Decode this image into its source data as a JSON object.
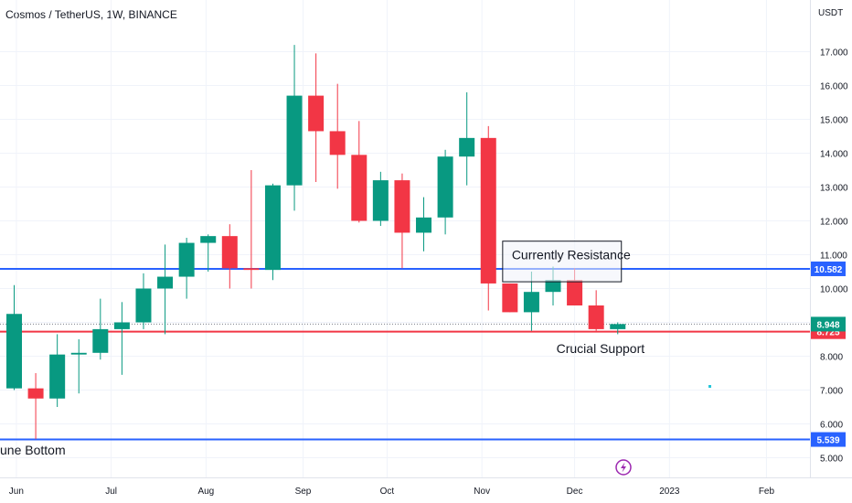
{
  "header": {
    "title": "Cosmos / TetherUS, 1W, BINANCE",
    "currency": "USDT"
  },
  "colors": {
    "up": "#089981",
    "down": "#f23645",
    "blue_line": "#2962ff",
    "red_line": "#f23645",
    "grid": "#f0f3fa",
    "axis_text": "#131722"
  },
  "chart_data": {
    "type": "candlestick",
    "interval": "1W",
    "y_ticks": [
      "5.000",
      "6.000",
      "7.000",
      "8.000",
      "9.000",
      "10.000",
      "11.000",
      "12.000",
      "13.000",
      "14.000",
      "15.000",
      "16.000",
      "17.000"
    ],
    "y_range": [
      4.85,
      18.0
    ],
    "x_ticks": [
      {
        "label": "Jun",
        "week": 0.1
      },
      {
        "label": "Jul",
        "week": 4.5
      },
      {
        "label": "Aug",
        "week": 8.9
      },
      {
        "label": "Sep",
        "week": 13.4
      },
      {
        "label": "Oct",
        "week": 17.3
      },
      {
        "label": "Nov",
        "week": 21.7
      },
      {
        "label": "Dec",
        "week": 26.0
      },
      {
        "label": "2023",
        "week": 30.4
      },
      {
        "label": "Feb",
        "week": 34.9
      }
    ],
    "candles": [
      {
        "date": "2022-05-30",
        "o": 7.05,
        "h": 10.1,
        "l": 7.0,
        "c": 9.25
      },
      {
        "date": "2022-06-06",
        "o": 7.05,
        "h": 7.5,
        "l": 5.55,
        "c": 6.75
      },
      {
        "date": "2022-06-13",
        "o": 6.75,
        "h": 8.65,
        "l": 6.5,
        "c": 8.05
      },
      {
        "date": "2022-06-20",
        "o": 8.05,
        "h": 8.5,
        "l": 6.9,
        "c": 8.1
      },
      {
        "date": "2022-06-27",
        "o": 8.1,
        "h": 9.7,
        "l": 7.9,
        "c": 8.8
      },
      {
        "date": "2022-07-04",
        "o": 8.8,
        "h": 9.6,
        "l": 7.45,
        "c": 9.0
      },
      {
        "date": "2022-07-11",
        "o": 9.0,
        "h": 10.45,
        "l": 8.8,
        "c": 10.0
      },
      {
        "date": "2022-07-18",
        "o": 10.0,
        "h": 11.3,
        "l": 8.65,
        "c": 10.35
      },
      {
        "date": "2022-07-25",
        "o": 10.35,
        "h": 11.5,
        "l": 9.7,
        "c": 11.35
      },
      {
        "date": "2022-08-01",
        "o": 11.35,
        "h": 11.6,
        "l": 10.5,
        "c": 11.55
      },
      {
        "date": "2022-08-08",
        "o": 11.55,
        "h": 11.9,
        "l": 10.0,
        "c": 10.6
      },
      {
        "date": "2022-08-15",
        "o": 10.6,
        "h": 13.5,
        "l": 10.0,
        "c": 10.55
      },
      {
        "date": "2022-08-22",
        "o": 10.55,
        "h": 13.1,
        "l": 10.25,
        "c": 13.05
      },
      {
        "date": "2022-08-29",
        "o": 13.05,
        "h": 17.2,
        "l": 12.3,
        "c": 15.7
      },
      {
        "date": "2022-09-05",
        "o": 15.7,
        "h": 16.95,
        "l": 13.15,
        "c": 14.65
      },
      {
        "date": "2022-09-12",
        "o": 14.65,
        "h": 16.05,
        "l": 12.95,
        "c": 13.95
      },
      {
        "date": "2022-09-19",
        "o": 13.95,
        "h": 14.95,
        "l": 11.95,
        "c": 12.0
      },
      {
        "date": "2022-09-26",
        "o": 12.0,
        "h": 13.45,
        "l": 11.85,
        "c": 13.2
      },
      {
        "date": "2022-10-03",
        "o": 13.2,
        "h": 13.4,
        "l": 10.6,
        "c": 11.65
      },
      {
        "date": "2022-10-10",
        "o": 11.65,
        "h": 12.7,
        "l": 11.1,
        "c": 12.1
      },
      {
        "date": "2022-10-17",
        "o": 12.1,
        "h": 14.1,
        "l": 11.6,
        "c": 13.9
      },
      {
        "date": "2022-10-24",
        "o": 13.9,
        "h": 15.8,
        "l": 13.05,
        "c": 14.45
      },
      {
        "date": "2022-10-31",
        "o": 14.45,
        "h": 14.8,
        "l": 9.35,
        "c": 10.15
      },
      {
        "date": "2022-11-07",
        "o": 10.15,
        "h": 10.15,
        "l": 9.3,
        "c": 9.3
      },
      {
        "date": "2022-11-14",
        "o": 9.3,
        "h": 10.5,
        "l": 8.75,
        "c": 9.9
      },
      {
        "date": "2022-11-21",
        "o": 9.9,
        "h": 10.65,
        "l": 9.5,
        "c": 10.25
      },
      {
        "date": "2022-11-28",
        "o": 10.25,
        "h": 10.6,
        "l": 9.5,
        "c": 9.5
      },
      {
        "date": "2022-12-05",
        "o": 9.5,
        "h": 9.95,
        "l": 8.75,
        "c": 8.8
      },
      {
        "date": "2022-12-12",
        "o": 8.8,
        "h": 9.0,
        "l": 8.65,
        "c": 8.95
      }
    ],
    "levels": [
      {
        "name": "resistance",
        "value": 10.582,
        "label": "10.582",
        "color": "#2962ff"
      },
      {
        "name": "support",
        "value": 8.725,
        "label": "8.725",
        "color": "#f23645"
      },
      {
        "name": "june-bottom",
        "value": 5.539,
        "label": "5.539",
        "color": "#2962ff"
      }
    ],
    "last_price": {
      "value": 8.948,
      "label": "8.948"
    },
    "annotations": {
      "resistance_text": "Currently Resistance",
      "support_text": "Crucial Support",
      "bottom_text": "une Bottom"
    }
  }
}
